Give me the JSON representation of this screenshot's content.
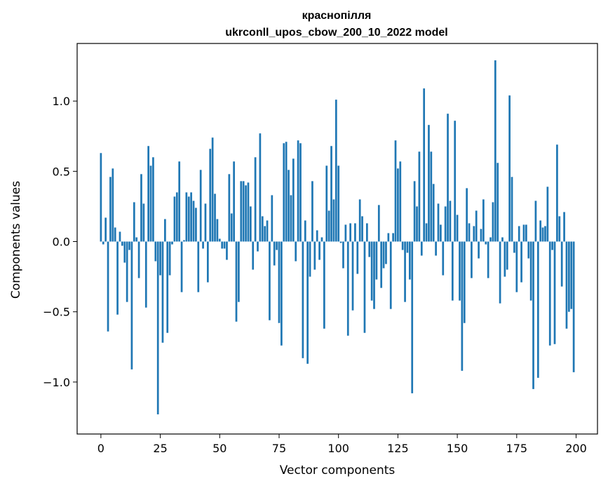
{
  "chart_data": {
    "type": "bar",
    "title": "краснопілля",
    "subtitle": "ukrconll_upos_cbow_200_10_2022 model",
    "xlabel": "Vector components",
    "ylabel": "Components values",
    "xlim": [
      -10,
      209
    ],
    "ylim": [
      -1.37,
      1.41
    ],
    "xticks": [
      0,
      25,
      50,
      75,
      100,
      125,
      150,
      175,
      200
    ],
    "yticks": [
      -1.0,
      -0.5,
      0.0,
      0.5,
      1.0
    ],
    "ytick_labels": [
      "−1.0",
      "−0.5",
      "0.0",
      "0.5",
      "1.0"
    ],
    "bar_color": "#1f77b4",
    "grid": false,
    "values": [
      0.63,
      -0.02,
      0.17,
      -0.64,
      0.46,
      0.52,
      0.1,
      -0.52,
      0.07,
      -0.03,
      -0.15,
      -0.43,
      -0.06,
      -0.91,
      0.28,
      0.03,
      -0.26,
      0.48,
      0.27,
      -0.47,
      0.68,
      0.54,
      0.6,
      -0.14,
      -1.23,
      -0.24,
      -0.72,
      0.16,
      -0.65,
      -0.24,
      -0.02,
      0.32,
      0.35,
      0.57,
      -0.36,
      0.01,
      0.35,
      0.32,
      0.35,
      0.29,
      0.24,
      -0.36,
      0.51,
      -0.05,
      0.27,
      -0.29,
      0.66,
      0.74,
      0.34,
      0.16,
      0.02,
      -0.05,
      -0.05,
      -0.13,
      0.48,
      0.2,
      0.57,
      -0.57,
      -0.43,
      0.43,
      0.43,
      0.4,
      0.42,
      0.25,
      -0.2,
      0.6,
      -0.07,
      0.77,
      0.18,
      0.11,
      0.15,
      -0.56,
      0.33,
      -0.17,
      -0.06,
      -0.58,
      -0.74,
      0.7,
      0.71,
      0.51,
      0.33,
      0.59,
      -0.14,
      0.72,
      0.7,
      -0.83,
      0.15,
      -0.87,
      -0.25,
      0.43,
      -0.2,
      0.08,
      -0.13,
      0.03,
      -0.62,
      0.54,
      0.22,
      0.68,
      0.3,
      1.01,
      0.54,
      -0.01,
      -0.19,
      0.12,
      -0.67,
      0.13,
      -0.49,
      0.13,
      -0.23,
      0.3,
      0.18,
      -0.65,
      0.13,
      -0.11,
      -0.42,
      -0.48,
      -0.27,
      0.26,
      -0.33,
      -0.19,
      -0.16,
      0.06,
      -0.48,
      0.06,
      0.72,
      0.52,
      0.57,
      -0.06,
      -0.43,
      -0.08,
      -0.27,
      -1.08,
      0.43,
      0.25,
      0.64,
      -0.1,
      1.09,
      0.13,
      0.83,
      0.64,
      0.41,
      -0.1,
      0.27,
      0.12,
      -0.24,
      0.25,
      0.91,
      0.29,
      -0.42,
      0.86,
      0.19,
      -0.42,
      -0.92,
      -0.58,
      0.38,
      0.13,
      -0.26,
      0.11,
      0.22,
      -0.12,
      0.09,
      0.3,
      -0.02,
      -0.26,
      0.03,
      0.28,
      1.29,
      0.56,
      -0.44,
      0.03,
      -0.25,
      -0.2,
      1.04,
      0.46,
      -0.08,
      -0.36,
      0.11,
      -0.29,
      0.12,
      0.12,
      -0.12,
      -0.42,
      -1.05,
      0.29,
      -0.97,
      0.15,
      0.1,
      0.11,
      0.39,
      -0.74,
      -0.06,
      -0.73,
      0.69,
      0.18,
      -0.32,
      0.21,
      -0.62,
      -0.5,
      -0.48,
      -0.93
    ]
  }
}
